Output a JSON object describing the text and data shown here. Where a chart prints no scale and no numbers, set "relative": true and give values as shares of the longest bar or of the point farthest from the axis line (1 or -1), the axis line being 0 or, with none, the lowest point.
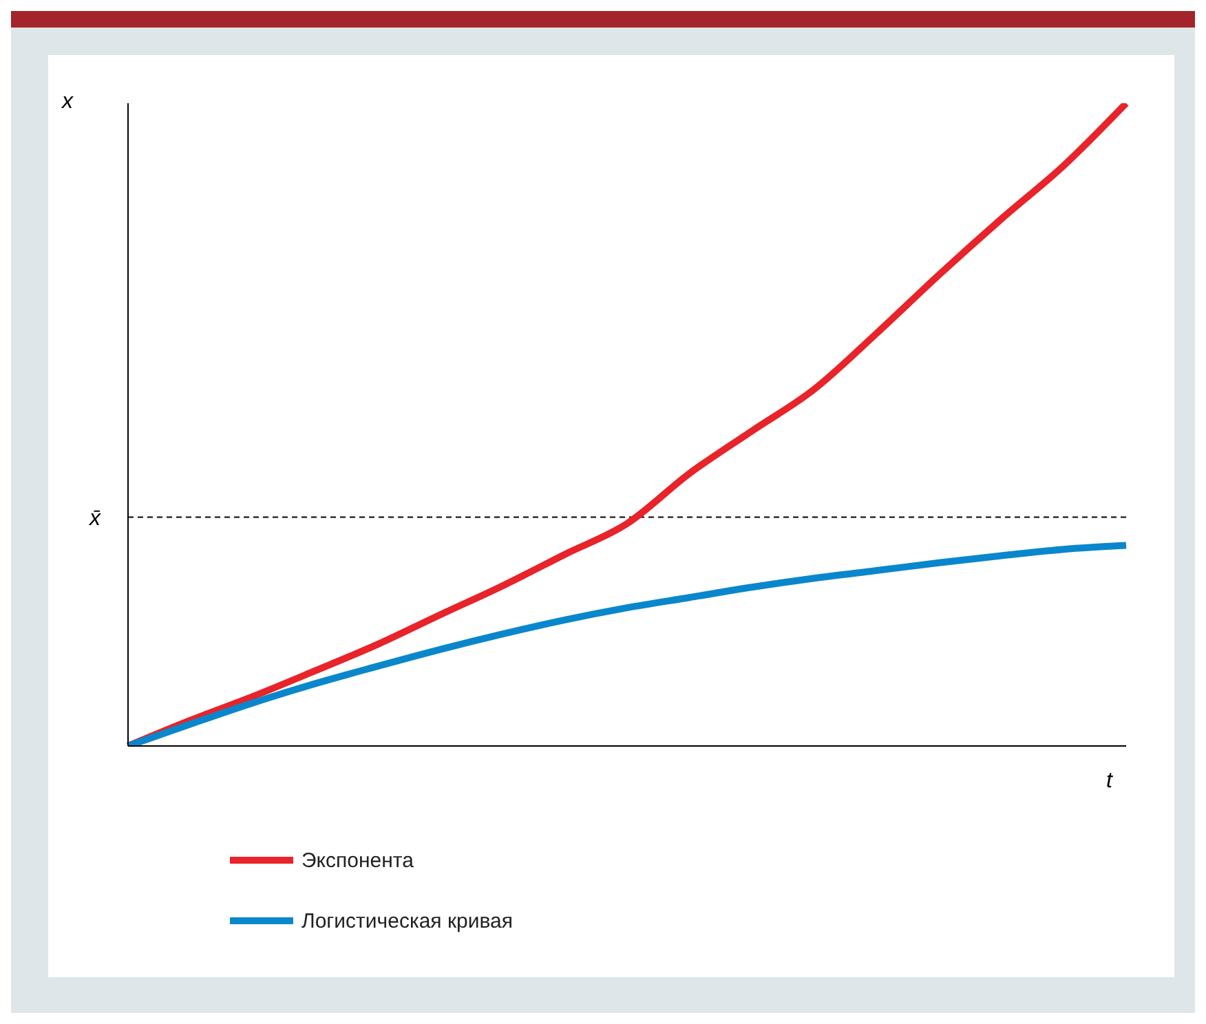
{
  "chart_data": {
    "type": "line",
    "relative": true,
    "xlabel": "t",
    "ylabel": "x",
    "categories": [
      null,
      null,
      null,
      null,
      null,
      null,
      null,
      null,
      null,
      null,
      null,
      null,
      null,
      null,
      null,
      null,
      null
    ],
    "series": [
      {
        "name": "Экспонента",
        "color": "#e8232a",
        "values": [
          0,
          0.04,
          0.077,
          0.117,
          0.158,
          0.204,
          0.249,
          0.298,
          0.346,
          0.424,
          0.49,
          0.555,
          0.642,
          0.733,
          0.82,
          0.903,
          1
        ]
      },
      {
        "name": "Логистическая кривая",
        "color": "#0a87cc",
        "values": [
          0,
          0.034,
          0.067,
          0.097,
          0.124,
          0.15,
          0.174,
          0.196,
          0.215,
          0.231,
          0.247,
          0.261,
          0.273,
          0.285,
          0.296,
          0.306,
          0.312
        ]
      }
    ],
    "ref_lines": [
      {
        "axis": "y",
        "value": 0.356,
        "label": "x̄",
        "line_style": "dashed",
        "color": "#000000"
      }
    ],
    "legend": "bottom left",
    "grid": false,
    "marker": "none",
    "line_style": "solid"
  }
}
